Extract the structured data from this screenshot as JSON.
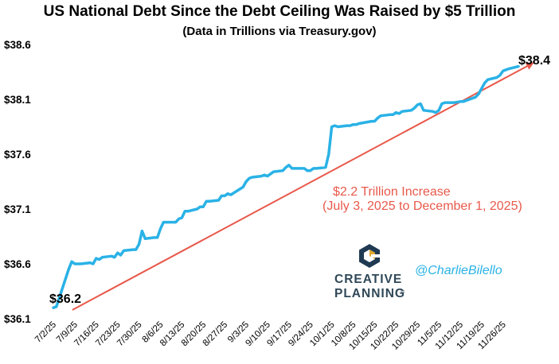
{
  "chart_data": {
    "type": "line",
    "title": "US National Debt Since the Debt Ceiling Was Raised by $5 Trillion",
    "subtitle": "(Data in Trillions via Treasury.gov)",
    "ylim": [
      36.1,
      38.6
    ],
    "yticks": [
      "$36.1",
      "$36.6",
      "$37.1",
      "$37.6",
      "$38.1",
      "$38.6"
    ],
    "ytick_values": [
      36.1,
      36.6,
      37.1,
      37.6,
      38.1,
      38.6
    ],
    "xticks": [
      "7/2/25",
      "7/9/25",
      "7/16/25",
      "7/23/25",
      "7/30/25",
      "8/6/25",
      "8/13/25",
      "8/20/25",
      "8/27/25",
      "9/3/25",
      "9/10/25",
      "9/17/25",
      "9/24/25",
      "10/1/25",
      "10/8/25",
      "10/15/25",
      "10/22/25",
      "10/29/25",
      "11/5/25",
      "11/12/25",
      "11/19/25",
      "11/26/25"
    ],
    "grid": false,
    "line_color": "#2ab2e6",
    "trend_color": "#e8594b",
    "series": [
      {
        "x": [
          "7/2/25",
          "7/3/25",
          "7/7/25",
          "7/8/25",
          "7/9/25",
          "7/10/25",
          "7/11/25",
          "7/14/25",
          "7/15/25",
          "7/16/25",
          "7/17/25",
          "7/18/25",
          "7/21/25",
          "7/22/25",
          "7/23/25",
          "7/24/25",
          "7/25/25",
          "7/28/25",
          "7/29/25",
          "7/30/25",
          "7/31/25",
          "8/1/25",
          "8/4/25",
          "8/5/25",
          "8/6/25",
          "8/7/25",
          "8/8/25",
          "8/11/25",
          "8/12/25",
          "8/13/25",
          "8/14/25",
          "8/15/25",
          "8/18/25",
          "8/19/25",
          "8/20/25",
          "8/21/25",
          "8/22/25",
          "8/25/25",
          "8/26/25",
          "8/27/25",
          "8/28/25",
          "8/29/25",
          "9/2/25",
          "9/3/25",
          "9/4/25",
          "9/5/25",
          "9/8/25",
          "9/9/25",
          "9/10/25",
          "9/11/25",
          "9/12/25",
          "9/15/25",
          "9/16/25",
          "9/17/25",
          "9/18/25",
          "9/19/25",
          "9/22/25",
          "9/23/25",
          "9/24/25",
          "9/25/25",
          "9/26/25",
          "9/29/25",
          "9/30/25",
          "10/1/25",
          "10/2/25",
          "10/3/25",
          "10/6/25",
          "10/7/25",
          "10/8/25",
          "10/9/25",
          "10/10/25",
          "10/14/25",
          "10/15/25",
          "10/16/25",
          "10/17/25",
          "10/20/25",
          "10/21/25",
          "10/22/25",
          "10/23/25",
          "10/24/25",
          "10/27/25",
          "10/28/25",
          "10/29/25",
          "10/30/25",
          "10/31/25",
          "11/3/25",
          "11/4/25",
          "11/5/25",
          "11/6/25",
          "11/7/25",
          "11/10/25",
          "11/12/25",
          "11/13/25",
          "11/14/25",
          "11/17/25",
          "11/18/25",
          "11/19/25",
          "11/20/25",
          "11/21/25",
          "11/24/25",
          "11/25/25",
          "11/26/25",
          "11/28/25",
          "12/1/25"
        ],
        "values": [
          36.2,
          36.21,
          36.55,
          36.62,
          36.6,
          36.6,
          36.6,
          36.61,
          36.6,
          36.65,
          36.64,
          36.66,
          36.67,
          36.66,
          36.7,
          36.68,
          36.72,
          36.73,
          36.73,
          36.78,
          36.9,
          36.83,
          36.84,
          36.84,
          36.92,
          36.98,
          36.98,
          36.98,
          37.01,
          37.02,
          37.08,
          37.08,
          37.1,
          37.12,
          37.12,
          37.17,
          37.17,
          37.18,
          37.22,
          37.22,
          37.24,
          37.23,
          37.3,
          37.35,
          37.38,
          37.39,
          37.4,
          37.41,
          37.4,
          37.42,
          37.44,
          37.45,
          37.48,
          37.5,
          37.47,
          37.47,
          37.47,
          37.45,
          37.45,
          37.47,
          37.47,
          37.48,
          37.6,
          37.85,
          37.86,
          37.85,
          37.86,
          37.86,
          37.87,
          37.87,
          37.88,
          37.9,
          37.9,
          37.93,
          37.95,
          37.96,
          37.96,
          37.98,
          37.97,
          37.99,
          38.0,
          38.02,
          38.05,
          38.06,
          38.0,
          37.99,
          37.98,
          38.0,
          38.06,
          38.07,
          38.07,
          38.08,
          38.08,
          38.09,
          38.12,
          38.15,
          38.2,
          38.25,
          38.28,
          38.3,
          38.32,
          38.36,
          38.38,
          38.4
        ]
      }
    ],
    "annotations": {
      "start_label": "$36.2",
      "end_label": "$38.4",
      "increase_line1": "$2.2 Trillion Increase",
      "increase_line2": "(July 3, 2025 to December 1, 2025)",
      "logo_line1": "CREATIVE",
      "logo_line2": "PLANNING",
      "logo_mark": "®",
      "handle": "@CharlieBilello"
    }
  }
}
